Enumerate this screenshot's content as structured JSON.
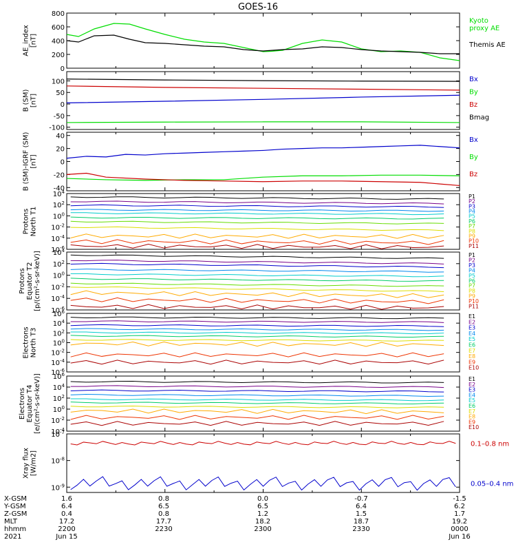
{
  "title": "GOES-16",
  "colors": {
    "axis": "#000000",
    "black": "#000000",
    "green": "#00dd00",
    "blue": "#0000cc",
    "red": "#cc0000",
    "palette11": [
      "#000000",
      "#770088",
      "#0000cc",
      "#0088ee",
      "#00cccc",
      "#00cc66",
      "#66dd00",
      "#dddd00",
      "#ffaa00",
      "#ee3300",
      "#aa0000"
    ],
    "palette10": [
      "#000000",
      "#770088",
      "#0000cc",
      "#0088ee",
      "#00cccc",
      "#00cc66",
      "#dddd00",
      "#ffaa00",
      "#ee3300",
      "#aa0000"
    ]
  },
  "chart_data": [
    {
      "type": "line",
      "id": "ae",
      "ylabel": "AE_index\n[nT]",
      "ylim": [
        0,
        800
      ],
      "yticks": [
        "0",
        "200",
        "400",
        "600",
        "800"
      ],
      "series": [
        {
          "name": "Kyoto\nproxy AE",
          "color": "green",
          "x": [
            0,
            0.03,
            0.07,
            0.12,
            0.16,
            0.2,
            0.25,
            0.3,
            0.35,
            0.4,
            0.45,
            0.5,
            0.52,
            0.55,
            0.6,
            0.65,
            0.7,
            0.75,
            0.8,
            0.85,
            0.9,
            0.95,
            1
          ],
          "y": [
            490,
            460,
            570,
            650,
            640,
            570,
            490,
            420,
            380,
            360,
            300,
            240,
            245,
            260,
            360,
            410,
            380,
            280,
            240,
            250,
            230,
            150,
            110
          ]
        },
        {
          "name": "Themis AE",
          "color": "black",
          "x": [
            0,
            0.03,
            0.07,
            0.12,
            0.16,
            0.2,
            0.25,
            0.3,
            0.35,
            0.4,
            0.45,
            0.5,
            0.55,
            0.6,
            0.65,
            0.7,
            0.75,
            0.8,
            0.85,
            0.9,
            0.95,
            1
          ],
          "y": [
            400,
            380,
            470,
            480,
            420,
            370,
            360,
            340,
            320,
            310,
            270,
            250,
            270,
            280,
            310,
            300,
            270,
            250,
            240,
            230,
            210,
            210
          ]
        }
      ]
    },
    {
      "type": "line",
      "id": "bsm",
      "ylabel": "B (SM)\n[nT]",
      "ylim": [
        -110,
        140
      ],
      "yticks": [
        "-100",
        "-50",
        "0",
        "50",
        "100"
      ],
      "yvals": [
        -100,
        -50,
        0,
        50,
        100
      ],
      "series": [
        {
          "name": "Bx",
          "color": "blue",
          "x": [
            0,
            0.25,
            0.5,
            0.75,
            1
          ],
          "y": [
            5,
            12,
            20,
            30,
            38
          ]
        },
        {
          "name": "By",
          "color": "green",
          "x": [
            0,
            0.25,
            0.5,
            0.75,
            1
          ],
          "y": [
            -80,
            -78,
            -77,
            -77,
            -80
          ]
        },
        {
          "name": "Bz",
          "color": "red",
          "x": [
            0,
            0.25,
            0.5,
            0.75,
            1
          ],
          "y": [
            78,
            72,
            68,
            64,
            60
          ]
        },
        {
          "name": "Bmag",
          "color": "black",
          "x": [
            0,
            0.25,
            0.5,
            0.75,
            1
          ],
          "y": [
            108,
            104,
            101,
            99,
            98
          ]
        }
      ]
    },
    {
      "type": "line",
      "id": "bigrf",
      "ylabel": "B (SM)-IGRF (SM)\n[nT]",
      "ylim": [
        -45,
        45
      ],
      "yticks": [
        "-40",
        "-20",
        "0",
        "20",
        "40"
      ],
      "yvals": [
        -40,
        -20,
        0,
        20,
        40
      ],
      "series": [
        {
          "name": "Bx",
          "color": "blue",
          "x": [
            0,
            0.05,
            0.1,
            0.15,
            0.2,
            0.25,
            0.3,
            0.35,
            0.4,
            0.45,
            0.5,
            0.55,
            0.6,
            0.65,
            0.7,
            0.75,
            0.8,
            0.85,
            0.9,
            0.95,
            1
          ],
          "y": [
            5,
            8,
            7,
            11,
            10,
            12,
            13,
            14,
            15,
            16,
            17,
            19,
            20,
            21,
            21,
            22,
            23,
            24,
            25,
            23,
            21
          ]
        },
        {
          "name": "By",
          "color": "green",
          "x": [
            0,
            0.1,
            0.2,
            0.3,
            0.4,
            0.5,
            0.6,
            0.7,
            0.8,
            0.9,
            1
          ],
          "y": [
            -26,
            -28,
            -29,
            -28,
            -28,
            -24,
            -22,
            -22,
            -21,
            -21,
            -22
          ]
        },
        {
          "name": "Bz",
          "color": "red",
          "x": [
            0,
            0.05,
            0.1,
            0.2,
            0.3,
            0.4,
            0.5,
            0.6,
            0.7,
            0.8,
            0.9,
            1
          ],
          "y": [
            -20,
            -18,
            -24,
            -27,
            -29,
            -30,
            -31,
            -30,
            -30,
            -31,
            -32,
            -37
          ]
        }
      ]
    },
    {
      "type": "line",
      "id": "protons_north",
      "ylabel": "Protons\nNorth T1",
      "scale": "log",
      "ylim": [
        -6,
        4
      ],
      "yticks": [
        "10^-6",
        "10^-4",
        "10^-2",
        "10^0",
        "10^2",
        "10^4"
      ],
      "yvals": [
        -6,
        -4,
        -2,
        0,
        2,
        4
      ],
      "series_labels": [
        "P1",
        "P2",
        "P3",
        "P4",
        "P5",
        "P6",
        "P7",
        "P8",
        "P9",
        "P10",
        "P11"
      ],
      "levels_start": [
        3.4,
        2.6,
        1.9,
        1.1,
        0.5,
        -0.3,
        -1.0,
        -2.0,
        -3.6,
        -4.6,
        -5.4
      ],
      "levels_end": [
        3.0,
        2.2,
        1.6,
        0.9,
        0.3,
        -0.5,
        -1.4,
        -2.6,
        -3.7,
        -4.8,
        -5.6
      ]
    },
    {
      "type": "line",
      "id": "protons_equator",
      "ylabel": "Protons\nEquator T2\n[p/(cm²-s-sr-keV)]",
      "scale": "log",
      "ylim": [
        -6,
        4
      ],
      "yticks": [
        "10^-6",
        "10^-4",
        "10^-2",
        "10^0",
        "10^2",
        "10^4"
      ],
      "yvals": [
        -6,
        -4,
        -2,
        0,
        2,
        4
      ],
      "series_labels": [
        "P1",
        "P2",
        "P3",
        "P4",
        "P5",
        "P6",
        "P7",
        "P8",
        "P9",
        "P10",
        "P11"
      ],
      "levels_start": [
        3.5,
        2.6,
        2.0,
        1.0,
        0.2,
        -0.6,
        -1.4,
        -2.0,
        -3.0,
        -4.2,
        -5.4
      ],
      "levels_end": [
        2.9,
        2.0,
        1.4,
        0.6,
        -0.2,
        -1.0,
        -1.9,
        -2.8,
        -3.6,
        -4.6,
        -5.6
      ]
    },
    {
      "type": "line",
      "id": "electrons_north",
      "ylabel": "Electrons\nNorth T3",
      "scale": "log",
      "ylim": [
        -6,
        6
      ],
      "yticks": [
        "10^-6",
        "10^-4",
        "10^-2",
        "10^0",
        "10^2",
        "10^4",
        "10^6"
      ],
      "yvals": [
        -6,
        -4,
        -2,
        0,
        2,
        4,
        6
      ],
      "series_labels": [
        "E1",
        "E2",
        "E3",
        "E4",
        "E5",
        "E6",
        "E7",
        "E8",
        "E9",
        "E10"
      ],
      "levels_start": [
        5.2,
        4.4,
        3.6,
        2.8,
        2.1,
        1.4,
        0.6,
        -0.2,
        -2.5,
        -4.0
      ],
      "levels_end": [
        5.0,
        4.2,
        3.4,
        2.6,
        1.9,
        1.2,
        0.4,
        -0.4,
        -2.5,
        -4.0
      ]
    },
    {
      "type": "line",
      "id": "electrons_equator",
      "ylabel": "Electrons\nEquator T4\n[e/(cm²-s-sr-keV)]",
      "scale": "log",
      "ylim": [
        -4,
        6
      ],
      "yticks": [
        "10^-4",
        "10^-2",
        "10^0",
        "10^2",
        "10^4",
        "10^6"
      ],
      "yvals": [
        -4,
        -2,
        0,
        2,
        4,
        6
      ],
      "series_labels": [
        "E1",
        "E2",
        "E3",
        "E4",
        "E5",
        "E6",
        "E7",
        "E8",
        "E9",
        "E10"
      ],
      "levels_start": [
        5.0,
        4.2,
        3.4,
        2.6,
        1.8,
        1.2,
        0.5,
        -0.3,
        -1.5,
        -2.6
      ],
      "levels_end": [
        4.8,
        4.0,
        3.2,
        2.4,
        1.6,
        1.0,
        0.3,
        -0.5,
        -1.5,
        -2.6
      ]
    },
    {
      "type": "line",
      "id": "xray",
      "ylabel": "Xray flux\n[W/m2]",
      "scale": "log",
      "ylim": [
        -9.2,
        -7
      ],
      "yticks": [
        "10^-9",
        "10^-8",
        "10^-7"
      ],
      "yvals": [
        -9,
        -8,
        -7
      ],
      "series": [
        {
          "name": "0.1–0.8 nm",
          "color": "red",
          "level": -7.35
        },
        {
          "name": "0.05–0.4 nm",
          "color": "blue",
          "level": -8.85
        }
      ]
    }
  ],
  "time_axis": {
    "rows": [
      {
        "label": "X-GSM",
        "values": [
          "1.6",
          "0.8",
          "0.0",
          "-0.7",
          "-1.5"
        ]
      },
      {
        "label": "Y-GSM",
        "values": [
          "6.4",
          "6.5",
          "6.5",
          "6.4",
          "6.2"
        ]
      },
      {
        "label": "Z-GSM",
        "values": [
          "0.4",
          "0.8",
          "1.2",
          "1.5",
          "1.7"
        ]
      },
      {
        "label": "MLT",
        "values": [
          "17.2",
          "17.7",
          "18.2",
          "18.7",
          "19.2"
        ]
      },
      {
        "label": "hhmm",
        "values": [
          "2200",
          "2230",
          "2300",
          "2330",
          "0000"
        ]
      },
      {
        "label": "2021",
        "values": [
          "Jun 15",
          "",
          "",
          "",
          "Jun 16"
        ]
      }
    ]
  }
}
